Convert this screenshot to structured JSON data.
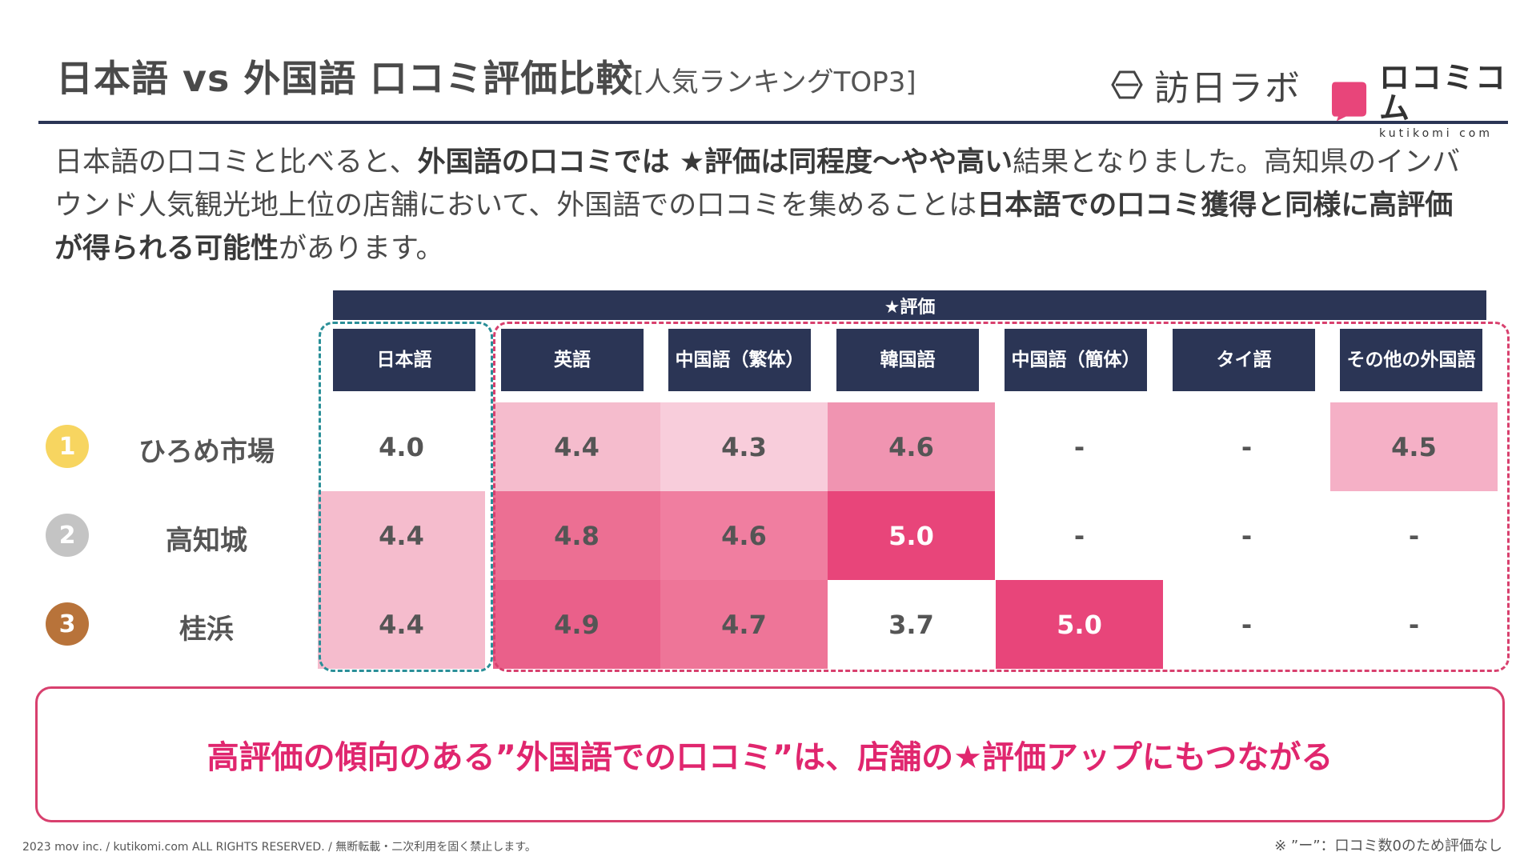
{
  "header": {
    "title_main": "日本語 vs 外国語 口コミ評価比較",
    "title_sub": "[人気ランキングTOP3]",
    "logo_left": "訪日ラボ",
    "logo_right_jp": "ロコミコム",
    "logo_right_en": "kutikomi com"
  },
  "intro": {
    "p1": "日本語の口コミと比べると、",
    "b1": "外国語の口コミでは ★評価は同程度〜やや高い",
    "p2": "結果となりました。高知県のインバウンド人気観光地上位の店舗において、外国語での口コミを集めることは",
    "b2": "日本語での口コミ獲得と同様に高評価が得られる可能性",
    "p3": "があります。"
  },
  "table": {
    "band_label": "★評価",
    "columns": [
      {
        "line1": "日本語",
        "line2": ""
      },
      {
        "line1": "英語",
        "line2": ""
      },
      {
        "line1": "中国語",
        "line2": "（繁体）"
      },
      {
        "line1": "韓国語",
        "line2": ""
      },
      {
        "line1": "中国語",
        "line2": "（簡体）"
      },
      {
        "line1": "タイ語",
        "line2": ""
      },
      {
        "line1": "その他の",
        "line2": "外国語"
      }
    ],
    "rows": [
      {
        "rank": "1",
        "rank_color": "#f7d560",
        "store": "ひろめ市場",
        "values": [
          "4.0",
          "4.4",
          "4.3",
          "4.6",
          "-",
          "-",
          "4.5"
        ],
        "colors": [
          "#ffffff",
          "#f5bccd",
          "#f8cddb",
          "#f094b1",
          "#ffffff",
          "#ffffff",
          "#f5b0c6"
        ]
      },
      {
        "rank": "2",
        "rank_color": "#c4c4c4",
        "store": "高知城",
        "values": [
          "4.4",
          "4.8",
          "4.6",
          "5.0",
          "-",
          "-",
          "-"
        ],
        "colors": [
          "#f5bccd",
          "#ec6f93",
          "#f07ea0",
          "#e8457a",
          "#ffffff",
          "#ffffff",
          "#ffffff"
        ]
      },
      {
        "rank": "3",
        "rank_color": "#b8733a",
        "store": "桂浜",
        "values": [
          "4.4",
          "4.9",
          "4.7",
          "3.7",
          "5.0",
          "-",
          "-"
        ],
        "colors": [
          "#f5bccd",
          "#ea608a",
          "#ee7598",
          "#ffffff",
          "#e8457a",
          "#ffffff",
          "#ffffff"
        ]
      }
    ]
  },
  "conclusion": "高評価の傾向のある”外国語での口コミ”は、店舗の★評価アップにもつながる",
  "footer": "2023 mov inc. / kutikomi.com ALL RIGHTS RESERVED. / 無断転載・二次利用を固く禁止します。",
  "note": "※ ”ー”：口コミ数0のため評価なし",
  "colors": {
    "navy": "#2b3555",
    "pink": "#e0266e",
    "teal": "#2a8f98"
  }
}
